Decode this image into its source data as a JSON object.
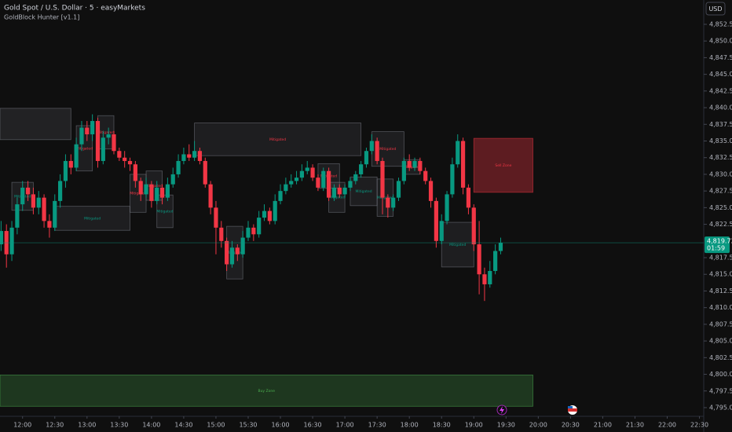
{
  "chart_data": {
    "type": "candlestick",
    "title": "Gold Spot / U.S. Dollar · 5 · easyMarkets",
    "subtitle": "GoldBlock Hunter [v1.1]",
    "currency": "USD",
    "up_color": "#089981",
    "down_color": "#f23645",
    "grid": false,
    "ylim": [
      4793.7,
      4856.15
    ],
    "yticks": [
      {
        "value": 4852.5,
        "label": "4,852.50"
      },
      {
        "value": 4850,
        "label": "4,850.00"
      },
      {
        "value": 4847.5,
        "label": "4,847.50"
      },
      {
        "value": 4845,
        "label": "4,845.00"
      },
      {
        "value": 4842.5,
        "label": "4,842.50"
      },
      {
        "value": 4840,
        "label": "4,840.00"
      },
      {
        "value": 4837.5,
        "label": "4,837.50"
      },
      {
        "value": 4835,
        "label": "4,835.00"
      },
      {
        "value": 4832.5,
        "label": "4,832.50"
      },
      {
        "value": 4830,
        "label": "4,830.00"
      },
      {
        "value": 4827.5,
        "label": "4,827.50"
      },
      {
        "value": 4825,
        "label": "4,825.00"
      },
      {
        "value": 4822.5,
        "label": "4,822.50"
      },
      {
        "value": 4817.5,
        "label": "4,817.50"
      },
      {
        "value": 4815,
        "label": "4,815.00"
      },
      {
        "value": 4812.5,
        "label": "4,812.50"
      },
      {
        "value": 4810,
        "label": "4,810.00"
      },
      {
        "value": 4807.5,
        "label": "4,807.50"
      },
      {
        "value": 4805,
        "label": "4,805.00"
      },
      {
        "value": 4802.5,
        "label": "4,802.50"
      },
      {
        "value": 4800,
        "label": "4,800.00"
      },
      {
        "value": 4797.5,
        "label": "4,797.50"
      },
      {
        "value": 4795,
        "label": "4,795.00"
      }
    ],
    "xlim": [
      "11:39",
      "22:34"
    ],
    "xticks": [
      "12:00",
      "12:30",
      "13:00",
      "13:30",
      "14:00",
      "14:30",
      "15:00",
      "15:30",
      "16:00",
      "16:30",
      "17:00",
      "17:30",
      "18:00",
      "18:30",
      "19:00",
      "19:30",
      "20:00",
      "20:30",
      "21:00",
      "21:30",
      "22:00",
      "22:30"
    ],
    "x": [
      "11:40",
      "11:45",
      "11:50",
      "11:55",
      "12:00",
      "12:05",
      "12:10",
      "12:15",
      "12:20",
      "12:25",
      "12:30",
      "12:35",
      "12:40",
      "12:45",
      "12:50",
      "12:55",
      "13:00",
      "13:05",
      "13:10",
      "13:15",
      "13:20",
      "13:25",
      "13:30",
      "13:35",
      "13:40",
      "13:45",
      "13:50",
      "13:55",
      "14:00",
      "14:05",
      "14:10",
      "14:15",
      "14:20",
      "14:25",
      "14:30",
      "14:35",
      "14:40",
      "14:45",
      "14:50",
      "14:55",
      "15:00",
      "15:05",
      "15:10",
      "15:15",
      "15:20",
      "15:25",
      "15:30",
      "15:35",
      "15:40",
      "15:45",
      "15:50",
      "15:55",
      "16:00",
      "16:05",
      "16:10",
      "16:15",
      "16:20",
      "16:25",
      "16:30",
      "16:35",
      "16:40",
      "16:45",
      "16:50",
      "16:55",
      "17:00",
      "17:05",
      "17:10",
      "17:15",
      "17:20",
      "17:25",
      "17:30",
      "17:35",
      "17:40",
      "17:45",
      "17:50",
      "17:55",
      "18:00",
      "18:05",
      "18:10",
      "18:15",
      "18:20",
      "18:25",
      "18:30",
      "18:35",
      "18:40",
      "18:45",
      "18:50",
      "18:55",
      "19:00",
      "19:05",
      "19:10",
      "19:15",
      "19:20",
      "19:25"
    ],
    "ohlc": [
      [
        4819.5,
        4823,
        4818.5,
        4821.5
      ],
      [
        4821.5,
        4822.5,
        4816,
        4818
      ],
      [
        4818,
        4823,
        4817,
        4822
      ],
      [
        4822,
        4826.5,
        4821,
        4825.5
      ],
      [
        4825.5,
        4829,
        4824.5,
        4828
      ],
      [
        4828,
        4829,
        4826,
        4827
      ],
      [
        4827,
        4828,
        4824,
        4825
      ],
      [
        4825,
        4827.5,
        4824,
        4826.5
      ],
      [
        4826.5,
        4827,
        4822,
        4823
      ],
      [
        4823,
        4824,
        4820.5,
        4822
      ],
      [
        4822,
        4827,
        4821.5,
        4826
      ],
      [
        4826,
        4830,
        4825,
        4829
      ],
      [
        4829,
        4833,
        4828,
        4832
      ],
      [
        4832,
        4833,
        4830,
        4831
      ],
      [
        4831,
        4835.5,
        4830.5,
        4834.5
      ],
      [
        4834.5,
        4838,
        4833.5,
        4837
      ],
      [
        4837,
        4838,
        4835,
        4836
      ],
      [
        4836,
        4839,
        4835,
        4838
      ],
      [
        4838,
        4838.5,
        4831,
        4832
      ],
      [
        4832,
        4836.5,
        4831.5,
        4835.5
      ],
      [
        4835.5,
        4837,
        4834.5,
        4836
      ],
      [
        4836,
        4836.5,
        4833,
        4833.5
      ],
      [
        4833.5,
        4834,
        4832,
        4832.5
      ],
      [
        4832.5,
        4833.5,
        4831,
        4832
      ],
      [
        4832,
        4832.5,
        4830.5,
        4831.5
      ],
      [
        4831.5,
        4832,
        4828,
        4829
      ],
      [
        4829,
        4829.5,
        4826,
        4827
      ],
      [
        4827,
        4829.5,
        4826.5,
        4828.5
      ],
      [
        4828.5,
        4829,
        4825,
        4826
      ],
      [
        4826,
        4829,
        4825.5,
        4828
      ],
      [
        4828,
        4828.5,
        4825.5,
        4826.5
      ],
      [
        4826.5,
        4829.5,
        4826,
        4828.5
      ],
      [
        4828.5,
        4831,
        4828,
        4830
      ],
      [
        4830,
        4833,
        4829.5,
        4832
      ],
      [
        4832,
        4834,
        4831.5,
        4833
      ],
      [
        4833,
        4834.5,
        4832,
        4832.5
      ],
      [
        4832.5,
        4835,
        4832,
        4833.5
      ],
      [
        4833.5,
        4834,
        4831.5,
        4832
      ],
      [
        4832,
        4832.5,
        4828,
        4828.5
      ],
      [
        4828.5,
        4829,
        4824,
        4825
      ],
      [
        4825,
        4826,
        4818,
        4822
      ],
      [
        4822,
        4823,
        4819,
        4820
      ],
      [
        4820,
        4820.5,
        4815.5,
        4816.5
      ],
      [
        4816.5,
        4820,
        4816,
        4819
      ],
      [
        4819,
        4819.5,
        4817,
        4818
      ],
      [
        4818,
        4821.5,
        4817.5,
        4820.5
      ],
      [
        4820.5,
        4823,
        4820,
        4822
      ],
      [
        4822,
        4822.5,
        4820,
        4821
      ],
      [
        4821,
        4824.5,
        4820.5,
        4823.5
      ],
      [
        4823.5,
        4825.5,
        4823,
        4824.5
      ],
      [
        4824.5,
        4825,
        4822.5,
        4823
      ],
      [
        4823,
        4827,
        4822.5,
        4826
      ],
      [
        4826,
        4828.5,
        4825.5,
        4827.5
      ],
      [
        4827.5,
        4829.5,
        4827,
        4828.5
      ],
      [
        4828.5,
        4830,
        4828,
        4829
      ],
      [
        4829,
        4830.5,
        4828.5,
        4829.5
      ],
      [
        4829.5,
        4831.5,
        4829,
        4830.5
      ],
      [
        4830.5,
        4832,
        4830,
        4831
      ],
      [
        4831,
        4831.5,
        4829,
        4829.5
      ],
      [
        4829.5,
        4830,
        4827.5,
        4828
      ],
      [
        4828,
        4831,
        4827.5,
        4830.5
      ],
      [
        4830.5,
        4831,
        4826,
        4826.5
      ],
      [
        4826.5,
        4828.5,
        4826,
        4828
      ],
      [
        4828,
        4828.5,
        4826.5,
        4827
      ],
      [
        4827,
        4828.5,
        4826.5,
        4828
      ],
      [
        4828,
        4829.5,
        4827.5,
        4829
      ],
      [
        4829,
        4830.5,
        4828.5,
        4830
      ],
      [
        4830,
        4832,
        4829.5,
        4831.5
      ],
      [
        4831.5,
        4834,
        4831,
        4833.5
      ],
      [
        4833.5,
        4836,
        4833,
        4835
      ],
      [
        4835,
        4835.5,
        4831.5,
        4832
      ],
      [
        4832,
        4832.5,
        4824,
        4826.5
      ],
      [
        4826.5,
        4827,
        4823.5,
        4825
      ],
      [
        4825,
        4827,
        4824.5,
        4826.5
      ],
      [
        4826.5,
        4829.5,
        4826,
        4829
      ],
      [
        4829,
        4832.5,
        4828.5,
        4832
      ],
      [
        4832,
        4833,
        4830.5,
        4831
      ],
      [
        4831,
        4832.5,
        4830.5,
        4832
      ],
      [
        4832,
        4832.5,
        4830,
        4830.5
      ],
      [
        4830.5,
        4831,
        4828.5,
        4829
      ],
      [
        4829,
        4829.5,
        4825,
        4826
      ],
      [
        4826,
        4826.5,
        4819,
        4820
      ],
      [
        4820,
        4824,
        4819.5,
        4823
      ],
      [
        4823,
        4827.5,
        4822.5,
        4827
      ],
      [
        4827,
        4832.5,
        4826.5,
        4831.5
      ],
      [
        4831.5,
        4836,
        4831,
        4835
      ],
      [
        4835,
        4835.5,
        4827,
        4828
      ],
      [
        4828,
        4828.5,
        4824,
        4825
      ],
      [
        4825,
        4825.5,
        4818.5,
        4819.5
      ],
      [
        4819.5,
        4823,
        4812,
        4815
      ],
      [
        4815,
        4816,
        4811,
        4813.5
      ],
      [
        4813.5,
        4817,
        4813,
        4815.5
      ],
      [
        4815.5,
        4819.5,
        4815,
        4818.5
      ],
      [
        4818.5,
        4820.5,
        4818,
        4819.73
      ]
    ],
    "last_price": {
      "value": 4819.73,
      "label": "4,819.73"
    },
    "countdown": "01:59",
    "zones": [
      {
        "start": "11:39",
        "end": "12:45",
        "top": 4839.9,
        "bottom": 4835.2,
        "color": "#787b86",
        "fill_opacity": 0.18
      },
      {
        "start": "11:50",
        "end": "12:10",
        "top": 4828.8,
        "bottom": 4824.6,
        "color": "#787b86",
        "fill_opacity": 0.15,
        "label": "Mitigated",
        "label_color": "#089981"
      },
      {
        "start": "12:30",
        "end": "13:40",
        "top": 4825.2,
        "bottom": 4821.6,
        "color": "#787b86",
        "fill_opacity": 0.15,
        "label": "Mitigated",
        "label_color": "#089981"
      },
      {
        "start": "12:50",
        "end": "13:05",
        "top": 4837.3,
        "bottom": 4830.5,
        "color": "#787b86",
        "fill_opacity": 0.15,
        "label": "Mitigated",
        "label_color": "#f23645"
      },
      {
        "start": "13:10",
        "end": "13:25",
        "top": 4838.8,
        "bottom": 4833.8,
        "color": "#787b86",
        "fill_opacity": 0.15,
        "label": "Mitigated",
        "label_color": "#f23645"
      },
      {
        "start": "13:40",
        "end": "13:55",
        "top": 4830.0,
        "bottom": 4824.3,
        "color": "#787b86",
        "fill_opacity": 0.15,
        "label": "Mitigated",
        "label_color": "#f23645"
      },
      {
        "start": "13:55",
        "end": "14:10",
        "top": 4830.5,
        "bottom": 4826.1,
        "color": "#787b86",
        "fill_opacity": 0.15,
        "label": "Mitigated",
        "label_color": "#f23645"
      },
      {
        "start": "14:05",
        "end": "14:20",
        "top": 4826.9,
        "bottom": 4822.0,
        "color": "#787b86",
        "fill_opacity": 0.15,
        "label": "Mitigated",
        "label_color": "#089981"
      },
      {
        "start": "14:40",
        "end": "17:15",
        "top": 4837.7,
        "bottom": 4832.8,
        "color": "#787b86",
        "fill_opacity": 0.15,
        "label": "Mitigated",
        "label_color": "#f23645"
      },
      {
        "start": "15:10",
        "end": "15:25",
        "top": 4822.2,
        "bottom": 4814.3,
        "color": "#787b86",
        "fill_opacity": 0.15,
        "label": "Mitigated",
        "label_color": "#089981"
      },
      {
        "start": "16:35",
        "end": "16:55",
        "top": 4831.6,
        "bottom": 4827.9,
        "color": "#787b86",
        "fill_opacity": 0.15,
        "label": "Mitigated",
        "label_color": "#f23645"
      },
      {
        "start": "16:45",
        "end": "17:00",
        "top": 4828.8,
        "bottom": 4824.3,
        "color": "#787b86",
        "fill_opacity": 0.15,
        "label": "Mitigated",
        "label_color": "#089981"
      },
      {
        "start": "17:05",
        "end": "17:30",
        "top": 4829.6,
        "bottom": 4825.3,
        "color": "#787b86",
        "fill_opacity": 0.15,
        "label": "Mitigated",
        "label_color": "#089981"
      },
      {
        "start": "17:25",
        "end": "17:55",
        "top": 4836.4,
        "bottom": 4831.2,
        "color": "#787b86",
        "fill_opacity": 0.15,
        "label": "Mitigated",
        "label_color": "#f23645"
      },
      {
        "start": "17:30",
        "end": "17:45",
        "top": 4829.3,
        "bottom": 4823.7,
        "color": "#787b86",
        "fill_opacity": 0.15,
        "label": "Mitigated",
        "label_color": "#089981"
      },
      {
        "start": "17:55",
        "end": "18:10",
        "top": 4832.2,
        "bottom": 4830.0,
        "color": "#787b86",
        "fill_opacity": 0.15,
        "label": "Mitigated",
        "label_color": "#f23645"
      },
      {
        "start": "18:30",
        "end": "19:00",
        "top": 4822.8,
        "bottom": 4816.1,
        "color": "#787b86",
        "fill_opacity": 0.15,
        "label": "Mitigated",
        "label_color": "#089981"
      },
      {
        "start": "19:00",
        "end": "19:55",
        "top": 4835.4,
        "bottom": 4827.3,
        "color": "#f23645",
        "fill_opacity": 0.35,
        "label": "Sell Zone",
        "label_color": "#f23645"
      },
      {
        "start": "11:39",
        "end": "19:55",
        "top": 4799.9,
        "bottom": 4795.2,
        "color": "#4caf50",
        "fill_opacity": 0.25,
        "label": "Buy Zone",
        "label_color": "#4caf50"
      }
    ]
  }
}
